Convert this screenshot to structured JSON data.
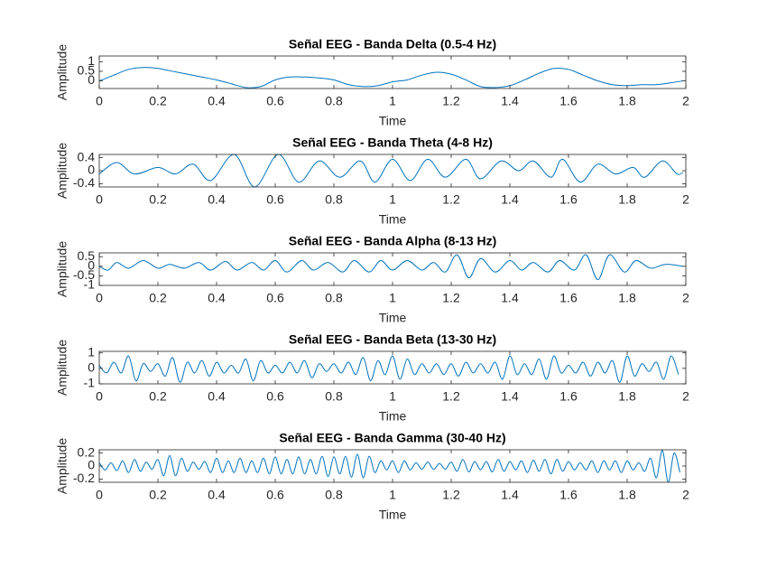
{
  "chart_data": [
    {
      "type": "line",
      "title": "Señal EEG - Banda Delta (0.5-4 Hz)",
      "xlabel": "Time",
      "ylabel": "Amplitude",
      "color": "#0072bd",
      "xlim": [
        0,
        2
      ],
      "xticks": [
        0,
        0.2,
        0.4,
        0.6,
        0.8,
        1,
        1.2,
        1.4,
        1.6,
        1.8,
        2
      ],
      "ylim": [
        -0.4,
        1.3
      ],
      "yticks": [
        0,
        0.5,
        1
      ],
      "x": [
        0,
        0.05,
        0.1,
        0.15,
        0.2,
        0.25,
        0.3,
        0.35,
        0.4,
        0.45,
        0.5,
        0.55,
        0.6,
        0.65,
        0.7,
        0.75,
        0.8,
        0.85,
        0.9,
        0.95,
        1,
        1.05,
        1.1,
        1.15,
        1.2,
        1.25,
        1.3,
        1.35,
        1.4,
        1.45,
        1.5,
        1.55,
        1.6,
        1.65,
        1.7,
        1.75,
        1.8,
        1.85,
        1.9,
        1.95,
        1.99
      ],
      "values": [
        0,
        0.3,
        0.6,
        0.7,
        0.65,
        0.5,
        0.35,
        0.2,
        0.05,
        -0.15,
        -0.35,
        -0.3,
        0.05,
        0.2,
        0.2,
        0.15,
        0.05,
        -0.2,
        -0.3,
        -0.25,
        -0.05,
        0.05,
        0.3,
        0.45,
        0.35,
        0.05,
        -0.3,
        -0.35,
        -0.25,
        0.05,
        0.4,
        0.65,
        0.6,
        0.3,
        0,
        -0.2,
        -0.25,
        -0.2,
        -0.2,
        -0.1,
        0
      ]
    },
    {
      "type": "line",
      "title": "Señal EEG - Banda Theta (4-8 Hz)",
      "xlabel": "Time",
      "ylabel": "Amplitude",
      "color": "#0072bd",
      "xlim": [
        0,
        2
      ],
      "xticks": [
        0,
        0.2,
        0.4,
        0.6,
        0.8,
        1,
        1.2,
        1.4,
        1.6,
        1.8,
        2
      ],
      "ylim": [
        -0.5,
        0.5
      ],
      "yticks": [
        -0.4,
        0,
        0.4
      ],
      "x": [
        0,
        0.06,
        0.12,
        0.2,
        0.26,
        0.32,
        0.38,
        0.46,
        0.53,
        0.61,
        0.68,
        0.75,
        0.82,
        0.89,
        0.94,
        1,
        1.06,
        1.12,
        1.18,
        1.25,
        1.3,
        1.37,
        1.43,
        1.48,
        1.54,
        1.58,
        1.64,
        1.7,
        1.76,
        1.82,
        1.86,
        1.92,
        1.97,
        1.99
      ],
      "values": [
        -0.1,
        0.25,
        -0.1,
        0.1,
        -0.1,
        0.2,
        -0.3,
        0.5,
        -0.5,
        0.5,
        -0.35,
        0.3,
        -0.2,
        0.3,
        -0.35,
        0.35,
        -0.3,
        0.35,
        -0.2,
        0.35,
        -0.25,
        0.3,
        0,
        0.3,
        -0.2,
        0.35,
        -0.35,
        0.2,
        -0.1,
        0.1,
        -0.2,
        0.3,
        -0.1,
        -0.05
      ]
    },
    {
      "type": "line",
      "title": "Señal EEG - Banda Alpha (8-13 Hz)",
      "xlabel": "Time",
      "ylabel": "Amplitude",
      "color": "#0072bd",
      "xlim": [
        0,
        2
      ],
      "xticks": [
        0,
        0.2,
        0.4,
        0.6,
        0.8,
        1,
        1.2,
        1.4,
        1.6,
        1.8,
        2
      ],
      "ylim": [
        -1,
        0.7
      ],
      "yticks": [
        -1,
        -0.5,
        0,
        0.5
      ],
      "x": [
        0,
        0.03,
        0.06,
        0.1,
        0.15,
        0.2,
        0.24,
        0.29,
        0.34,
        0.38,
        0.43,
        0.47,
        0.52,
        0.56,
        0.6,
        0.64,
        0.69,
        0.73,
        0.78,
        0.83,
        0.87,
        0.92,
        0.96,
        1,
        1.05,
        1.1,
        1.14,
        1.18,
        1.22,
        1.26,
        1.3,
        1.35,
        1.4,
        1.44,
        1.48,
        1.53,
        1.57,
        1.62,
        1.66,
        1.7,
        1.74,
        1.79,
        1.83,
        1.88,
        1.93,
        1.99
      ],
      "values": [
        0,
        -0.2,
        0.2,
        -0.1,
        0.3,
        -0.1,
        0.1,
        -0.1,
        0.2,
        -0.2,
        0.25,
        -0.2,
        0.2,
        -0.2,
        0.3,
        -0.3,
        0.3,
        -0.2,
        0.2,
        -0.3,
        0.3,
        -0.3,
        0.3,
        -0.2,
        0.3,
        -0.2,
        0.2,
        -0.3,
        0.6,
        -0.6,
        0.4,
        -0.3,
        0.3,
        -0.2,
        0.2,
        -0.3,
        0.3,
        -0.2,
        0.6,
        -0.7,
        0.6,
        -0.3,
        0.3,
        -0.1,
        0.1,
        0
      ]
    },
    {
      "type": "line",
      "title": "Señal EEG - Banda Beta (13-30 Hz)",
      "xlabel": "Time",
      "ylabel": "Amplitude",
      "color": "#0072bd",
      "xlim": [
        0,
        2
      ],
      "xticks": [
        0,
        0.2,
        0.4,
        0.6,
        0.8,
        1,
        1.2,
        1.4,
        1.6,
        1.8,
        2
      ],
      "ylim": [
        -1,
        1.1
      ],
      "yticks": [
        -1,
        0,
        1
      ],
      "x": [
        0,
        0.025,
        0.05,
        0.075,
        0.1,
        0.125,
        0.15,
        0.175,
        0.2,
        0.225,
        0.25,
        0.275,
        0.3,
        0.325,
        0.35,
        0.375,
        0.4,
        0.425,
        0.45,
        0.475,
        0.5,
        0.525,
        0.55,
        0.575,
        0.6,
        0.625,
        0.65,
        0.675,
        0.7,
        0.725,
        0.75,
        0.775,
        0.8,
        0.825,
        0.85,
        0.875,
        0.9,
        0.925,
        0.95,
        0.975,
        1,
        1.025,
        1.05,
        1.075,
        1.1,
        1.125,
        1.15,
        1.175,
        1.2,
        1.225,
        1.25,
        1.275,
        1.3,
        1.325,
        1.35,
        1.375,
        1.4,
        1.425,
        1.45,
        1.475,
        1.5,
        1.525,
        1.55,
        1.575,
        1.6,
        1.625,
        1.65,
        1.675,
        1.7,
        1.725,
        1.75,
        1.775,
        1.8,
        1.825,
        1.85,
        1.875,
        1.9,
        1.925,
        1.95,
        1.975
      ],
      "values": [
        0.2,
        -0.3,
        0.4,
        -0.3,
        0.8,
        -0.8,
        0.3,
        -0.2,
        0.3,
        -0.5,
        0.7,
        -0.9,
        0.4,
        -0.3,
        0.5,
        -0.5,
        0.4,
        -0.3,
        0.2,
        -0.3,
        0.6,
        -0.8,
        0.5,
        -0.3,
        0.2,
        -0.3,
        0.4,
        -0.3,
        0.5,
        -0.6,
        0.3,
        -0.2,
        0.3,
        -0.3,
        0.4,
        -0.4,
        0.7,
        -0.8,
        0.5,
        -0.4,
        0.8,
        -0.7,
        0.6,
        -0.4,
        0.3,
        -0.3,
        0.3,
        -0.4,
        0.3,
        -0.5,
        0.4,
        -0.3,
        0.3,
        -0.3,
        0.4,
        -0.7,
        0.8,
        -0.4,
        0.3,
        -0.4,
        0.6,
        -0.7,
        0.8,
        -0.3,
        0.2,
        -0.3,
        0.4,
        -0.5,
        0.4,
        -0.3,
        0.5,
        -0.9,
        0.8,
        -0.5,
        0.3,
        -0.2,
        0.4,
        -0.7,
        0.8,
        -0.4
      ]
    },
    {
      "type": "line",
      "title": "Señal EEG - Banda Gamma (30-40 Hz)",
      "xlabel": "Time",
      "ylabel": "Amplitude",
      "color": "#0072bd",
      "xlim": [
        0,
        2
      ],
      "xticks": [
        0,
        0.2,
        0.4,
        0.6,
        0.8,
        1,
        1.2,
        1.4,
        1.6,
        1.8,
        2
      ],
      "ylim": [
        -0.25,
        0.25
      ],
      "yticks": [
        -0.2,
        0,
        0.2
      ],
      "x": [
        0,
        0.02,
        0.04,
        0.06,
        0.08,
        0.1,
        0.12,
        0.14,
        0.16,
        0.18,
        0.2,
        0.22,
        0.24,
        0.26,
        0.28,
        0.3,
        0.32,
        0.34,
        0.36,
        0.38,
        0.4,
        0.42,
        0.44,
        0.46,
        0.48,
        0.5,
        0.52,
        0.54,
        0.56,
        0.58,
        0.6,
        0.62,
        0.64,
        0.66,
        0.68,
        0.7,
        0.72,
        0.74,
        0.76,
        0.78,
        0.8,
        0.82,
        0.84,
        0.86,
        0.88,
        0.9,
        0.92,
        0.94,
        0.96,
        0.98,
        1,
        1.02,
        1.04,
        1.06,
        1.08,
        1.1,
        1.12,
        1.14,
        1.16,
        1.18,
        1.2,
        1.22,
        1.24,
        1.26,
        1.28,
        1.3,
        1.32,
        1.34,
        1.36,
        1.38,
        1.4,
        1.42,
        1.44,
        1.46,
        1.48,
        1.5,
        1.52,
        1.54,
        1.56,
        1.58,
        1.6,
        1.62,
        1.64,
        1.66,
        1.68,
        1.7,
        1.72,
        1.74,
        1.76,
        1.78,
        1.8,
        1.82,
        1.84,
        1.86,
        1.88,
        1.9,
        1.92,
        1.94,
        1.96,
        1.98
      ],
      "values": [
        0.05,
        -0.06,
        0.05,
        -0.07,
        0.08,
        -0.1,
        0.1,
        -0.08,
        0.06,
        -0.05,
        0.1,
        -0.15,
        0.16,
        -0.15,
        0.12,
        -0.08,
        0.06,
        -0.05,
        0.07,
        -0.1,
        0.12,
        -0.1,
        0.08,
        -0.1,
        0.12,
        -0.1,
        0.08,
        -0.1,
        0.12,
        -0.12,
        0.14,
        -0.12,
        0.1,
        -0.12,
        0.14,
        -0.12,
        0.1,
        -0.12,
        0.15,
        -0.16,
        0.14,
        -0.12,
        0.15,
        -0.17,
        0.18,
        -0.18,
        0.15,
        -0.1,
        0.08,
        -0.06,
        0.08,
        -0.1,
        0.08,
        -0.06,
        0.05,
        -0.05,
        0.06,
        -0.05,
        0.04,
        -0.05,
        0.06,
        -0.08,
        0.1,
        -0.09,
        0.07,
        -0.06,
        0.07,
        -0.09,
        0.1,
        -0.08,
        0.07,
        -0.06,
        0.08,
        -0.1,
        0.09,
        -0.08,
        0.1,
        -0.12,
        0.1,
        -0.08,
        0.07,
        -0.06,
        0.05,
        -0.06,
        0.08,
        -0.1,
        0.08,
        -0.06,
        0.08,
        -0.1,
        0.08,
        -0.06,
        0.05,
        -0.08,
        0.12,
        -0.18,
        0.24,
        -0.25,
        0.2,
        -0.1
      ]
    }
  ]
}
